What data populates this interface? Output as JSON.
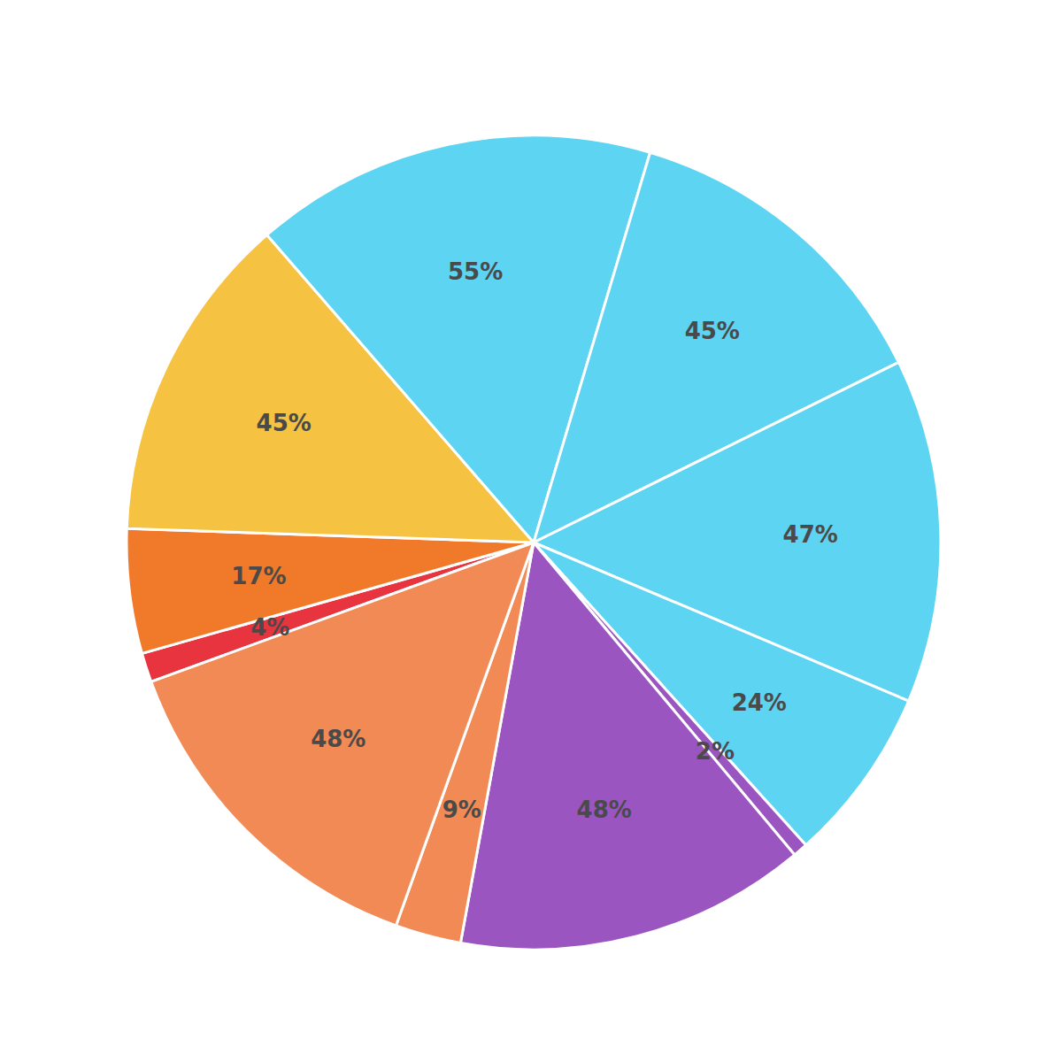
{
  "chart_data": {
    "type": "pie",
    "values": [
      4,
      17,
      45,
      55,
      45,
      47,
      24,
      2,
      48,
      9,
      48
    ],
    "value_labels": [
      "4%",
      "17%",
      "45%",
      "55%",
      "45%",
      "47%",
      "24%",
      "2%",
      "48%",
      "9%",
      "48%"
    ],
    "colors": [
      "#e8343f",
      "#f07a2a",
      "#f5c242",
      "#5cd4f2",
      "#5cd4f2",
      "#5cd4f2",
      "#5cd4f2",
      "#9b55c0",
      "#9b55c0",
      "#f28a55",
      "#f28a55"
    ],
    "data_labels": true
  }
}
